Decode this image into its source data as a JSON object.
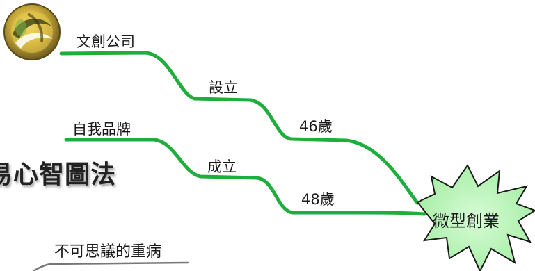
{
  "mindmap": {
    "branches": {
      "company": "文創公司",
      "brand": "自我品牌",
      "illness": "不可思議的重病"
    },
    "links": {
      "setup": "設立",
      "age46": "46歲",
      "established": "成立",
      "age48": "48歲"
    },
    "title": "易心智圖法",
    "center": "微型創業",
    "colors": {
      "branch": "#1fae3c",
      "burst_fill": "#b8f5b8",
      "burst_stroke": "#1a1a1a",
      "gray_branch": "#777777"
    },
    "icons": {
      "logo": "golden-circle-logo"
    }
  }
}
